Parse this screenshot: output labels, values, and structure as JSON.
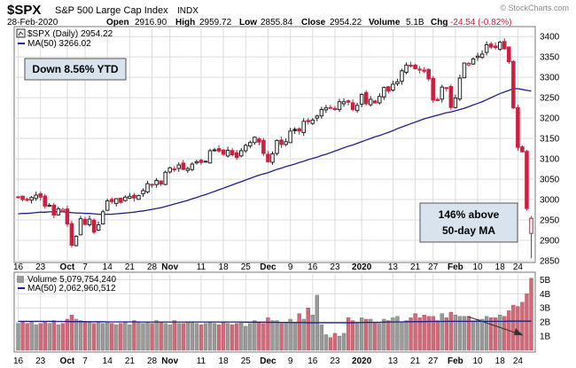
{
  "header": {
    "symbol": "$SPX",
    "name": "S&P 500 Large Cap Index",
    "exchange": "INDX",
    "date": "28-Feb-2020",
    "open_label": "Open",
    "open": "2916.90",
    "high_label": "High",
    "high": "2959.72",
    "low_label": "Low",
    "low": "2855.84",
    "close_label": "Close",
    "close": "2954.22",
    "volume_label": "Volume",
    "volume": "5.1B",
    "chg_label": "Chg",
    "chg": "-24.54 (-0.82%)",
    "watermark": "© StockCharts.com"
  },
  "legend": {
    "price": "$SPX (Daily) 2954.22",
    "ma": "MA(50) 3266.02",
    "volume": "Volume 5,079,754,240",
    "volume_ma": "MA(50) 2,062,960,512"
  },
  "annotations": {
    "ytd": "Down 8.56% YTD",
    "ma_line1": "146% above",
    "ma_line2": "50-day MA"
  },
  "colors": {
    "up": "#222222",
    "down": "#cc1f3f",
    "ma": "#1f1f8f",
    "vol_up": "#9a9a9a",
    "vol_down": "#d06a78",
    "grid": "#dcdcdc",
    "frame": "#777777",
    "annotation_bg": "#d9e3ee"
  },
  "chart_data": {
    "type": "candlestick",
    "price_axis": {
      "min": 2850,
      "max": 3400,
      "ticks": [
        2850,
        2900,
        2950,
        3000,
        3050,
        3100,
        3150,
        3200,
        3250,
        3300,
        3350,
        3400
      ]
    },
    "volume_axis": {
      "unit": "B",
      "ticks": [
        "1B",
        "2B",
        "3B",
        "4B",
        "5B"
      ],
      "tick_values": [
        1,
        2,
        3,
        4,
        5
      ]
    },
    "x_labels": [
      {
        "label": "16",
        "index": 0
      },
      {
        "label": "23",
        "index": 5
      },
      {
        "label": "Oct",
        "index": 11
      },
      {
        "label": "7",
        "index": 15
      },
      {
        "label": "14",
        "index": 20
      },
      {
        "label": "21",
        "index": 25
      },
      {
        "label": "28",
        "index": 30
      },
      {
        "label": "Nov",
        "index": 34
      },
      {
        "label": "11",
        "index": 41
      },
      {
        "label": "18",
        "index": 46
      },
      {
        "label": "25",
        "index": 51
      },
      {
        "label": "Dec",
        "index": 56
      },
      {
        "label": "9",
        "index": 61
      },
      {
        "label": "16",
        "index": 66
      },
      {
        "label": "23",
        "index": 71
      },
      {
        "label": "2020",
        "index": 77
      },
      {
        "label": "13",
        "index": 84
      },
      {
        "label": "21",
        "index": 89
      },
      {
        "label": "27",
        "index": 93
      },
      {
        "label": "Feb",
        "index": 98
      },
      {
        "label": "10",
        "index": 103
      },
      {
        "label": "18",
        "index": 108
      },
      {
        "label": "24",
        "index": 112
      }
    ],
    "closes": [
      3006,
      3000,
      2999,
      3005,
      3011,
      3006,
      2984,
      2986,
      2962,
      2977,
      2976,
      2940,
      2888,
      2910,
      2953,
      2939,
      2952,
      2920,
      2938,
      2970,
      2997,
      2995,
      3002,
      2993,
      3006,
      3008,
      3004,
      3010,
      3022,
      3039,
      3036,
      3047,
      3038,
      3067,
      3078,
      3075,
      3085,
      3074,
      3076,
      3087,
      3093,
      3091,
      3094,
      3120,
      3122,
      3119,
      3111,
      3121,
      3110,
      3103,
      3120,
      3133,
      3140,
      3153,
      3141,
      3113,
      3093,
      3112,
      3145,
      3135,
      3142,
      3168,
      3169,
      3168,
      3192,
      3191,
      3195,
      3205,
      3221,
      3225,
      3224,
      3221,
      3240,
      3240,
      3239,
      3221,
      3231,
      3258,
      3235,
      3246,
      3237,
      3253,
      3275,
      3266,
      3283,
      3289,
      3316,
      3330,
      3329,
      3321,
      3320,
      3315,
      3296,
      3244,
      3243,
      3276,
      3274,
      3226,
      3249,
      3298,
      3335,
      3334,
      3345,
      3352,
      3357,
      3380,
      3374,
      3373,
      3386,
      3370,
      3338,
      3225,
      3128,
      3117,
      2978,
      2954
    ],
    "opens_note": "daily candles; last bar opened 2916.90",
    "ma50": [
      2965,
      2966,
      2966,
      2967,
      2968,
      2969,
      2969,
      2970,
      2970,
      2970,
      2970,
      2969,
      2968,
      2967,
      2967,
      2966,
      2966,
      2965,
      2964,
      2964,
      2964,
      2964,
      2965,
      2966,
      2967,
      2968,
      2969,
      2971,
      2972,
      2974,
      2976,
      2978,
      2980,
      2983,
      2986,
      2989,
      2992,
      2995,
      2998,
      3002,
      3005,
      3009,
      3012,
      3016,
      3020,
      3024,
      3028,
      3032,
      3036,
      3040,
      3044,
      3048,
      3052,
      3056,
      3060,
      3063,
      3066,
      3070,
      3074,
      3077,
      3081,
      3084,
      3087,
      3091,
      3094,
      3098,
      3101,
      3104,
      3108,
      3111,
      3115,
      3119,
      3123,
      3127,
      3131,
      3134,
      3138,
      3142,
      3146,
      3150,
      3154,
      3157,
      3161,
      3165,
      3169,
      3174,
      3178,
      3182,
      3186,
      3190,
      3194,
      3198,
      3201,
      3204,
      3207,
      3210,
      3213,
      3215,
      3218,
      3221,
      3224,
      3228,
      3232,
      3236,
      3240,
      3245,
      3250,
      3255,
      3260,
      3264,
      3268,
      3272,
      3272,
      3270,
      3268,
      3266
    ],
    "volumes": [
      1.9,
      2.0,
      1.9,
      2.0,
      1.8,
      1.9,
      2.0,
      1.9,
      2.1,
      1.8,
      1.9,
      2.2,
      2.5,
      2.2,
      2.1,
      2.0,
      2.0,
      1.9,
      2.0,
      1.9,
      2.0,
      1.9,
      1.8,
      1.9,
      2.0,
      1.8,
      2.1,
      2.0,
      1.9,
      2.0,
      1.9,
      2.1,
      2.0,
      1.9,
      1.8,
      2.1,
      1.9,
      1.9,
      2.0,
      2.0,
      1.9,
      1.8,
      1.9,
      2.0,
      1.9,
      1.8,
      2.0,
      1.9,
      1.8,
      1.9,
      2.0,
      1.7,
      1.9,
      2.1,
      2.0,
      1.9,
      2.3,
      2.1,
      2.1,
      1.9,
      2.0,
      2.2,
      2.0,
      2.6,
      2.2,
      3.0,
      2.5,
      3.9,
      1.8,
      1.1,
      0.9,
      1.2,
      1.0,
      1.2,
      2.3,
      2.1,
      2.0,
      2.3,
      2.2,
      2.2,
      2.0,
      1.9,
      2.2,
      2.1,
      2.3,
      2.4,
      2.0,
      2.1,
      2.3,
      2.6,
      2.3,
      2.5,
      2.4,
      2.4,
      2.1,
      2.6,
      2.3,
      2.7,
      2.5,
      2.4,
      2.4,
      2.4,
      2.1,
      2.2,
      2.2,
      2.4,
      2.3,
      2.3,
      2.5,
      2.4,
      2.8,
      3.2,
      3.1,
      3.4,
      4.0,
      5.1
    ],
    "volume_ma50": [
      2.05,
      2.05,
      2.05,
      2.05,
      2.05,
      2.05,
      2.05,
      2.05,
      2.05,
      2.04,
      2.04,
      2.04,
      2.03,
      2.03,
      2.03,
      2.03,
      2.02,
      2.02,
      2.02,
      2.02,
      2.01,
      2.01,
      2.01,
      2.01,
      2.01,
      2.01,
      2.01,
      2.01,
      2.0,
      2.0,
      2.0,
      2.0,
      2.0,
      2.0,
      2.0,
      2.0,
      2.0,
      2.0,
      2.0,
      2.0,
      2.0,
      2.0,
      2.0,
      2.0,
      2.0,
      2.0,
      2.0,
      2.0,
      2.0,
      2.0,
      2.0,
      1.99,
      1.99,
      1.99,
      1.99,
      1.99,
      1.98,
      1.98,
      1.98,
      1.97,
      1.97,
      1.96,
      1.96,
      1.96,
      1.96,
      1.95,
      1.95,
      1.95,
      1.95,
      1.95,
      1.95,
      1.95,
      1.95,
      1.95,
      1.95,
      1.95,
      1.96,
      1.96,
      1.97,
      1.97,
      1.98,
      1.98,
      1.99,
      2.0,
      2.0,
      2.01,
      2.01,
      2.02,
      2.02,
      2.03,
      2.03,
      2.03,
      2.04,
      2.04,
      2.04,
      2.04,
      2.05,
      2.05,
      2.05,
      2.05,
      2.05,
      2.05,
      2.05,
      2.05,
      2.05,
      2.05,
      2.05,
      2.05,
      2.05,
      2.05,
      2.06,
      2.06,
      2.06,
      2.06,
      2.06,
      2.06
    ]
  }
}
